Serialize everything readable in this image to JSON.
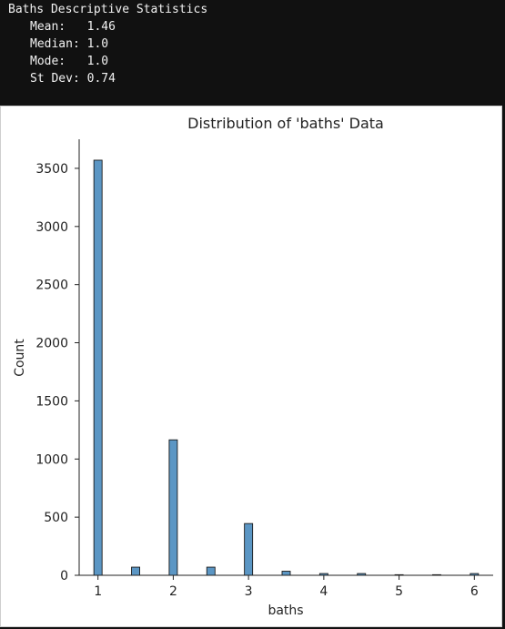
{
  "console": {
    "title": "Baths Descriptive Statistics",
    "stats": [
      {
        "label": "Mean:   ",
        "value": "1.46"
      },
      {
        "label": "Median: ",
        "value": "1.0"
      },
      {
        "label": "Mode:   ",
        "value": "1.0"
      },
      {
        "label": "St Dev: ",
        "value": "0.74"
      }
    ]
  },
  "chart_data": {
    "type": "bar",
    "title": "Distribution of 'baths' Data",
    "xlabel": "baths",
    "ylabel": "Count",
    "x": [
      1,
      1.5,
      2,
      2.5,
      3,
      3.5,
      4,
      4.5,
      5,
      5.5,
      6
    ],
    "values": [
      3570,
      70,
      1165,
      70,
      445,
      35,
      15,
      15,
      5,
      5,
      15
    ],
    "xlim": [
      0.75,
      6.25
    ],
    "ylim": [
      0,
      3750
    ],
    "xticks": [
      1,
      2,
      3,
      4,
      5,
      6
    ],
    "yticks": [
      0,
      500,
      1000,
      1500,
      2000,
      2500,
      3000,
      3500
    ],
    "bar_color": "#5b96c4",
    "edge_color": "#1a1a1a",
    "grid": false
  }
}
